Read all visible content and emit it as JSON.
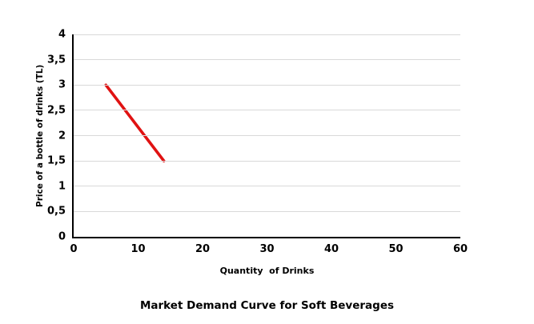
{
  "chart": {
    "title": "Market Demand Curve for Soft Beverages",
    "x_axis_title": "Quantity  of Drinks",
    "y_axis_title": "Price of a bottle of drinks (TL)"
  },
  "chart_data": {
    "type": "line",
    "title": "Market Demand Curve for Soft Beverages",
    "xlabel": "Quantity  of Drinks",
    "ylabel": "Price of a bottle of drinks (TL)",
    "xlim": [
      0,
      60
    ],
    "ylim": [
      0,
      4
    ],
    "x_ticks": [
      {
        "value": 0,
        "label": "0"
      },
      {
        "value": 10,
        "label": "10"
      },
      {
        "value": 20,
        "label": "20"
      },
      {
        "value": 30,
        "label": "30"
      },
      {
        "value": 40,
        "label": "40"
      },
      {
        "value": 50,
        "label": "50"
      },
      {
        "value": 60,
        "label": "60"
      }
    ],
    "y_ticks": [
      {
        "value": 0,
        "label": "0"
      },
      {
        "value": 0.5,
        "label": "0,5"
      },
      {
        "value": 1,
        "label": "1"
      },
      {
        "value": 1.5,
        "label": "1,5"
      },
      {
        "value": 2,
        "label": "2"
      },
      {
        "value": 2.5,
        "label": "2,5"
      },
      {
        "value": 3,
        "label": "3"
      },
      {
        "value": 3.5,
        "label": "3,5"
      },
      {
        "value": 4,
        "label": "4"
      }
    ],
    "grid": "horizontal-only",
    "legend": "none",
    "gridline_color": "#d9d9d9",
    "axis_color": "#000000",
    "series": [
      {
        "color": "#e01212",
        "stroke_width": 3.6,
        "points": [
          [
            5,
            3
          ],
          [
            14,
            1.5
          ]
        ]
      }
    ]
  }
}
